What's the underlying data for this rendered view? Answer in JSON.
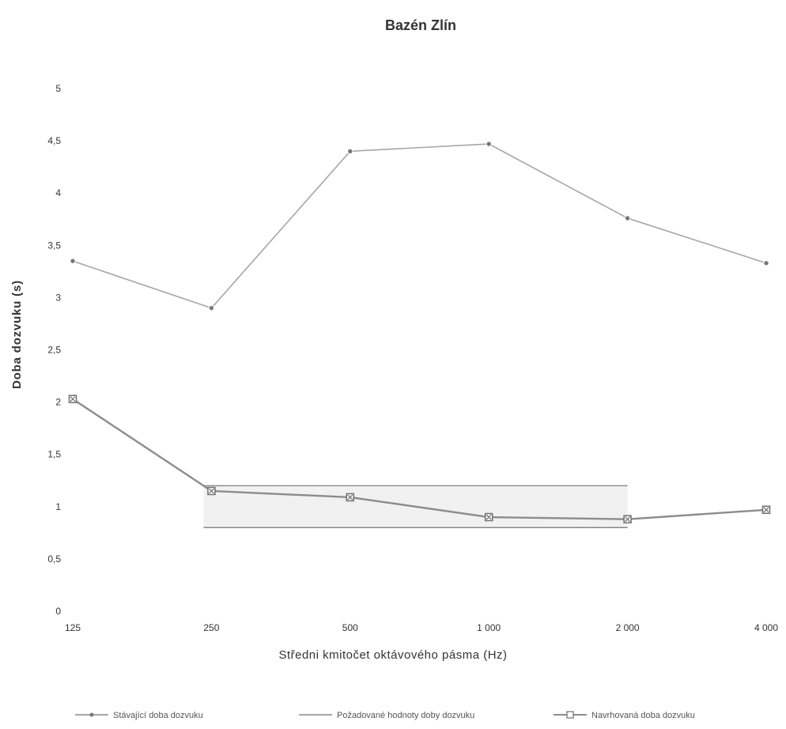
{
  "chart_data": {
    "type": "line",
    "title": "Bazén Zlín",
    "xlabel": "Středni kmitočet oktávového pásma (Hz)",
    "ylabel": "Doba dozvuku (s)",
    "categories": [
      "125",
      "250",
      "500",
      "1 000",
      "2 000",
      "4 000"
    ],
    "ylim": [
      0,
      5
    ],
    "yticks": [
      "0",
      "0,5",
      "1",
      "1,5",
      "2",
      "2,5",
      "3",
      "3,5",
      "4",
      "4,5",
      "5"
    ],
    "grid": false,
    "legend_position": "bottom",
    "series": [
      {
        "name": "Stávající doba dozvuku",
        "values": [
          3.35,
          2.9,
          4.4,
          4.47,
          3.76,
          3.33
        ],
        "color": "#a6a6a6",
        "marker": "circle"
      },
      {
        "name": "Požadované hodnoty doby dozvuku",
        "color": "#888888",
        "band": {
          "x_from": "250",
          "x_to": "2 000",
          "lower": 0.8,
          "upper": 1.2
        }
      },
      {
        "name": "Navrhovaná doba dozvuku",
        "values": [
          2.03,
          1.15,
          1.09,
          0.9,
          0.88,
          0.97
        ],
        "color": "#8c8c8c",
        "marker": "square"
      }
    ]
  }
}
